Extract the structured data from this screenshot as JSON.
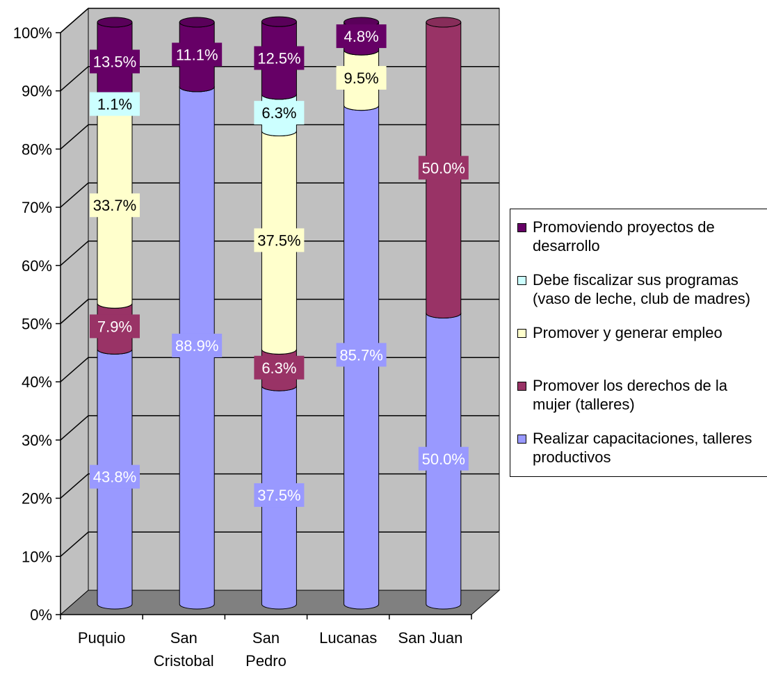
{
  "chart_data": {
    "type": "bar",
    "stacked": true,
    "percent": true,
    "three_d": true,
    "categories": [
      "Puquio",
      "San Cristobal",
      "San Pedro",
      "Lucanas",
      "San Juan"
    ],
    "category_lines": [
      [
        "Puquio"
      ],
      [
        "San",
        "Cristobal"
      ],
      [
        "San",
        "Pedro"
      ],
      [
        "Lucanas"
      ],
      [
        "San Juan"
      ]
    ],
    "series": [
      {
        "name": "Realizar capacitaciones, talleres productivos",
        "values": [
          43.8,
          88.9,
          37.5,
          85.7,
          50.0
        ],
        "labels": [
          "43.8%",
          "88.9%",
          "37.5%",
          "85.7%",
          "50.0%"
        ]
      },
      {
        "name": "Promover los derechos de la mujer (talleres)",
        "values": [
          7.9,
          0,
          6.3,
          0,
          50.0
        ],
        "labels": [
          "7.9%",
          "",
          "6.3%",
          "",
          "50.0%"
        ]
      },
      {
        "name": "Promover y generar empleo",
        "values": [
          33.7,
          0,
          37.5,
          9.5,
          0
        ],
        "labels": [
          "33.7%",
          "",
          "37.5%",
          "9.5%",
          ""
        ]
      },
      {
        "name": "Debe fiscalizar sus programas (vaso de leche, club de madres)",
        "values": [
          1.1,
          0,
          6.3,
          0,
          0
        ],
        "labels": [
          "1.1%",
          "",
          "6.3%",
          "",
          ""
        ]
      },
      {
        "name": "Promoviendo proyectos de desarrollo",
        "values": [
          13.5,
          11.1,
          12.5,
          4.8,
          0
        ],
        "labels": [
          "13.5%",
          "11.1%",
          "12.5%",
          "4.8%",
          ""
        ]
      }
    ],
    "yticks": [
      "0%",
      "10%",
      "20%",
      "30%",
      "40%",
      "50%",
      "60%",
      "70%",
      "80%",
      "90%",
      "100%"
    ],
    "ylim": [
      0,
      100
    ],
    "grid": true,
    "legend_position": "right",
    "colors": {
      "series": [
        "#9999ff",
        "#993366",
        "#ffffcc",
        "#ccffff",
        "#660066"
      ],
      "label_text": [
        "#ffffff",
        "#ffffff",
        "#000000",
        "#000000",
        "#ffffff"
      ],
      "wall": "#c0c0c0",
      "floor": "#808080"
    },
    "legend": [
      {
        "lines": [
          "Promoviendo proyectos de",
          "desarrollo"
        ],
        "series": 4
      },
      {
        "lines": [
          "Debe fiscalizar sus programas",
          "(vaso de leche, club de madres)"
        ],
        "series": 3
      },
      {
        "lines": [
          "Promover y generar empleo"
        ],
        "series": 2
      },
      {
        "lines": [
          "Promover los derechos de la",
          "mujer (talleres)"
        ],
        "series": 1
      },
      {
        "lines": [
          "Realizar capacitaciones, talleres",
          "productivos"
        ],
        "series": 0
      }
    ]
  }
}
